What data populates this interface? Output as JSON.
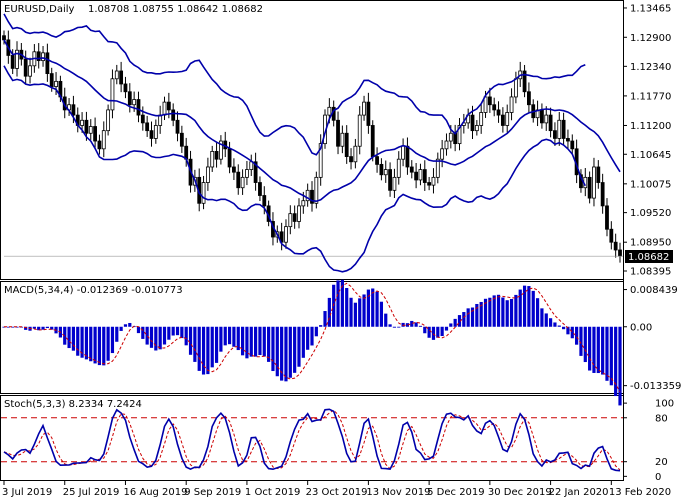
{
  "title": {
    "symbol": "EURUSD,Daily",
    "ohlc": "1.08708 1.08755 1.08642 1.08682"
  },
  "current_price_label": "1.08682",
  "colors": {
    "candle": "#000000",
    "bands": "#0000AA",
    "macd_hist": "#0000CC",
    "signal": "#CC0000",
    "stoch_main": "#0000AA",
    "stoch_signal": "#CC0000",
    "levels": "#CC0000",
    "frame": "#000000"
  },
  "chart_data": [
    {
      "type": "candlestick",
      "name": "price",
      "y_ticks": [
        "1.13465",
        "1.12900",
        "1.12340",
        "1.11770",
        "1.11200",
        "1.10645",
        "1.10075",
        "1.09520",
        "1.08950",
        "1.08395"
      ],
      "ylim": [
        1.0826,
        1.1358
      ],
      "x_labels": [
        "3 Jul 2019",
        "25 Jul 2019",
        "16 Aug 2019",
        "9 Sep 2019",
        "1 Oct 2019",
        "23 Oct 2019",
        "13 Nov 2019",
        "5 Dec 2019",
        "30 Dec 2019",
        "22 Jan 2020",
        "13 Feb 2020"
      ],
      "close": [
        1.1285,
        1.1255,
        1.123,
        1.1265,
        1.1248,
        1.1215,
        1.1235,
        1.1262,
        1.1245,
        1.126,
        1.122,
        1.1195,
        1.1205,
        1.1175,
        1.115,
        1.116,
        1.114,
        1.112,
        1.113,
        1.1105,
        1.1118,
        1.109,
        1.1075,
        1.111,
        1.115,
        1.121,
        1.1225,
        1.12,
        1.1185,
        1.116,
        1.117,
        1.114,
        1.1125,
        1.111,
        1.1095,
        1.112,
        1.114,
        1.1165,
        1.115,
        1.113,
        1.1105,
        1.108,
        1.1055,
        1.1005,
        1.102,
        1.097,
        1.101,
        1.104,
        1.107,
        1.1055,
        1.109,
        1.1075,
        1.104,
        1.103,
        1.1,
        1.102,
        1.1035,
        1.105,
        1.101,
        1.0985,
        1.0965,
        1.0935,
        1.0905,
        1.0915,
        1.0895,
        1.0925,
        1.095,
        1.0935,
        1.0965,
        1.0975,
        1.0995,
        1.097,
        1.102,
        1.1085,
        1.114,
        1.1155,
        1.113,
        1.108,
        1.1105,
        1.106,
        1.105,
        1.108,
        1.114,
        1.1165,
        1.112,
        1.106,
        1.1045,
        1.1025,
        1.1035,
        1.0995,
        1.102,
        1.1055,
        1.108,
        1.104,
        1.103,
        1.1015,
        1.1035,
        1.101,
        1.1005,
        1.102,
        1.1055,
        1.1075,
        1.109,
        1.1105,
        1.1085,
        1.112,
        1.1125,
        1.114,
        1.111,
        1.112,
        1.1145,
        1.1175,
        1.116,
        1.115,
        1.114,
        1.112,
        1.1145,
        1.1175,
        1.121,
        1.1225,
        1.1185,
        1.116,
        1.1135,
        1.115,
        1.1125,
        1.114,
        1.111,
        1.1095,
        1.113,
        1.1095,
        1.109,
        1.1075,
        1.1025,
        1.1,
        1.102,
        1.098,
        1.104,
        1.101,
        1.0965,
        1.092,
        1.0895,
        1.088,
        1.0868
      ]
    },
    {
      "type": "bar",
      "name": "MACD(5,34,4)",
      "label": "MACD(5,34,4) -0.012369 -0.010773",
      "y_ticks": [
        "0.008439",
        "0.00",
        "-0.013359"
      ],
      "ylim": [
        -0.0148,
        0.0097
      ]
    },
    {
      "type": "line",
      "name": "Stoch(5,3,3)",
      "label": "Stoch(5,3,3) 8.2334 7.2424",
      "y_ticks": [
        "100",
        "80",
        "20",
        "0"
      ],
      "ylim": [
        -5,
        107
      ],
      "levels": [
        80,
        20
      ]
    }
  ]
}
